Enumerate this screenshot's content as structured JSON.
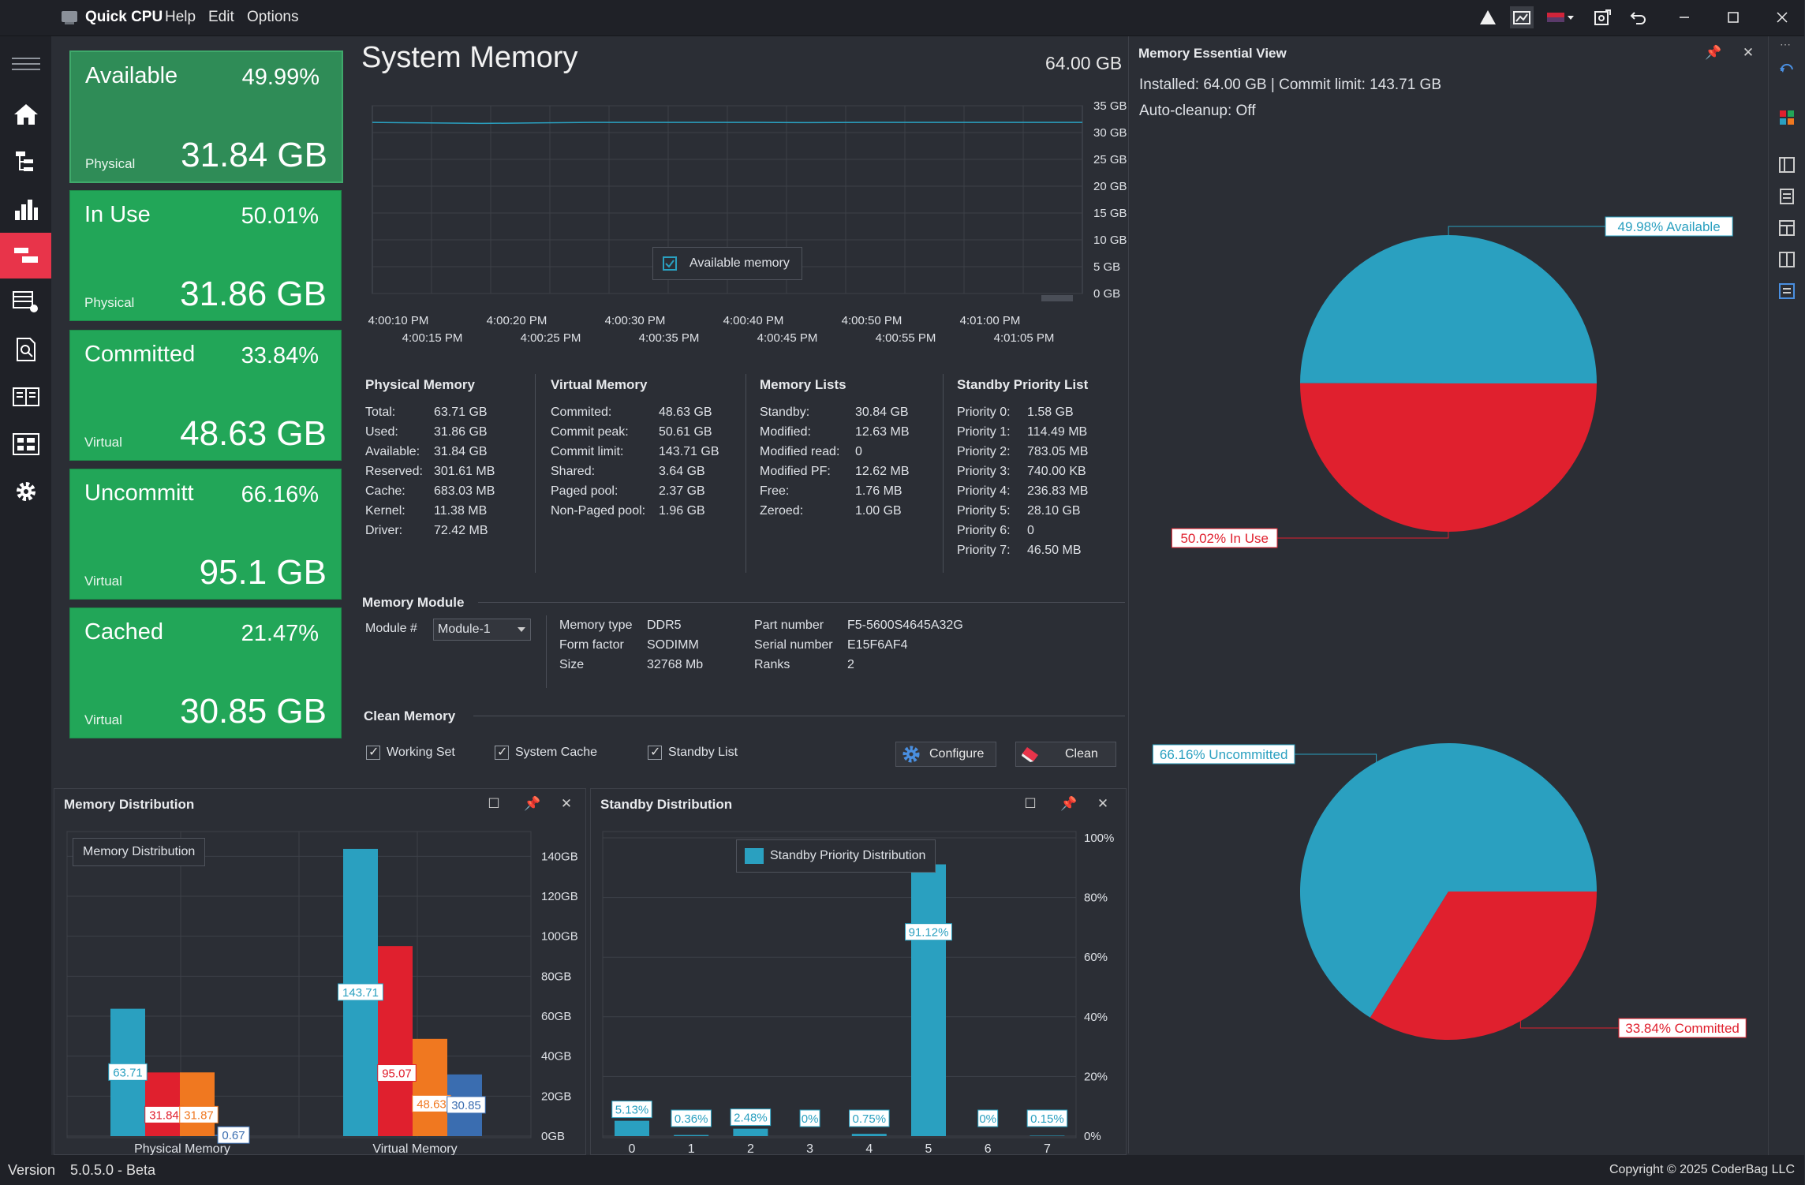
{
  "app": {
    "name": "Quick CPU",
    "menus": [
      "Help",
      "Edit",
      "Options"
    ]
  },
  "cards": [
    {
      "label": "Available",
      "percent": "49.99%",
      "sub": "Physical",
      "value": "31.84 GB"
    },
    {
      "label": "In Use",
      "percent": "50.01%",
      "sub": "Physical",
      "value": "31.86 GB"
    },
    {
      "label": "Committed",
      "percent": "33.84%",
      "sub": "Virtual",
      "value": "48.63 GB"
    },
    {
      "label": "Uncommitt",
      "percent": "66.16%",
      "sub": "Virtual",
      "value": "95.1 GB"
    },
    {
      "label": "Cached",
      "percent": "21.47%",
      "sub": "Virtual",
      "value": "30.85 GB"
    }
  ],
  "system_memory": {
    "title": "System Memory",
    "total": "64.00 GB",
    "chart": {
      "y_ticks": [
        "35 GB",
        "30 GB",
        "25 GB",
        "20 GB",
        "15 GB",
        "10 GB",
        "5 GB",
        "0 GB"
      ],
      "x_ticks_top": [
        "4:00:10 PM",
        "4:00:20 PM",
        "4:00:30 PM",
        "4:00:40 PM",
        "4:00:50 PM",
        "4:01:00 PM"
      ],
      "x_ticks_bottom": [
        "4:00:15 PM",
        "4:00:25 PM",
        "4:00:35 PM",
        "4:00:45 PM",
        "4:00:55 PM",
        "4:01:05 PM"
      ],
      "legend": "Available memory",
      "ylim": [
        0,
        35
      ],
      "series_values": [
        31.9,
        31.8,
        31.7,
        31.8,
        31.9,
        31.9,
        31.9,
        31.9,
        31.85,
        31.9,
        31.9,
        31.9,
        31.9,
        31.9
      ]
    }
  },
  "physical_memory": {
    "title": "Physical Memory",
    "rows": [
      {
        "k": "Total:",
        "v": "63.71 GB"
      },
      {
        "k": "Used:",
        "v": "31.86 GB"
      },
      {
        "k": "Available:",
        "v": "31.84 GB"
      },
      {
        "k": "Reserved:",
        "v": "301.61 MB"
      },
      {
        "k": "Cache:",
        "v": "683.03 MB"
      },
      {
        "k": "Kernel:",
        "v": "11.38 MB"
      },
      {
        "k": "Driver:",
        "v": "72.42 MB"
      }
    ]
  },
  "virtual_memory": {
    "title": "Virtual Memory",
    "rows": [
      {
        "k": "Commited:",
        "v": "48.63 GB"
      },
      {
        "k": "Commit peak:",
        "v": "50.61 GB"
      },
      {
        "k": "Commit limit:",
        "v": "143.71 GB"
      },
      {
        "k": "Shared:",
        "v": "3.64 GB"
      },
      {
        "k": "Paged pool:",
        "v": "2.37 GB"
      },
      {
        "k": "Non-Paged pool:",
        "v": "1.96 GB"
      }
    ]
  },
  "memory_lists": {
    "title": "Memory Lists",
    "rows": [
      {
        "k": "Standby:",
        "v": "30.84 GB"
      },
      {
        "k": "Modified:",
        "v": "12.63 MB"
      },
      {
        "k": "Modified read:",
        "v": "0"
      },
      {
        "k": "Modified PF:",
        "v": "12.62 MB"
      },
      {
        "k": "Free:",
        "v": "1.76 MB"
      },
      {
        "k": "Zeroed:",
        "v": "1.00 GB"
      }
    ]
  },
  "standby_priority": {
    "title": "Standby Priority List",
    "rows": [
      {
        "k": "Priority 0:",
        "v": "1.58 GB"
      },
      {
        "k": "Priority 1:",
        "v": "114.49 MB"
      },
      {
        "k": "Priority 2:",
        "v": "783.05 MB"
      },
      {
        "k": "Priority 3:",
        "v": "740.00 KB"
      },
      {
        "k": "Priority 4:",
        "v": "236.83 MB"
      },
      {
        "k": "Priority 5:",
        "v": "28.10 GB"
      },
      {
        "k": "Priority 6:",
        "v": "0"
      },
      {
        "k": "Priority 7:",
        "v": "46.50 MB"
      }
    ]
  },
  "memory_module": {
    "title": "Memory Module",
    "module_label": "Module #",
    "module_value": "Module-1",
    "col1": [
      {
        "k": "Memory type",
        "v": "DDR5"
      },
      {
        "k": "Form factor",
        "v": "SODIMM"
      },
      {
        "k": "Size",
        "v": "32768 Mb"
      }
    ],
    "col2": [
      {
        "k": "Part number",
        "v": "F5-5600S4645A32G"
      },
      {
        "k": "Serial number",
        "v": "E15F6AF4"
      },
      {
        "k": "Ranks",
        "v": "2"
      }
    ]
  },
  "clean_memory": {
    "title": "Clean Memory",
    "options": [
      "Working Set",
      "System Cache",
      "Standby List"
    ],
    "configure_label": "Configure",
    "clean_label": "Clean"
  },
  "memory_distribution": {
    "panel_title": "Memory Distribution",
    "legend": "Memory Distribution",
    "chart_data": {
      "type": "bar",
      "categories": [
        "Physical Memory",
        "Virtual Memory"
      ],
      "series": [
        {
          "color": "#2aa0c0",
          "values": [
            63.71,
            143.71
          ]
        },
        {
          "color": "#e0202e",
          "values": [
            31.84,
            95.07
          ]
        },
        {
          "color": "#f07820",
          "values": [
            31.87,
            48.63
          ]
        },
        {
          "color": "#3a6db0",
          "values": [
            0.67,
            30.85
          ]
        }
      ],
      "value_labels": [
        [
          "63.71",
          "143.71"
        ],
        [
          "31.84",
          "95.07"
        ],
        [
          "31.87",
          "48.63"
        ],
        [
          "0.67",
          "30.85"
        ]
      ],
      "y_ticks": [
        "140GB",
        "120GB",
        "100GB",
        "80GB",
        "60GB",
        "40GB",
        "20GB",
        "0GB"
      ],
      "ylim": [
        0,
        150
      ]
    }
  },
  "standby_distribution": {
    "panel_title": "Standby Distribution",
    "legend": "Standby Priority Distribution",
    "chart_data": {
      "type": "bar",
      "categories": [
        "0",
        "1",
        "2",
        "3",
        "4",
        "5",
        "6",
        "7"
      ],
      "values": [
        5.13,
        0.36,
        2.48,
        0,
        0.75,
        91.12,
        0,
        0.15
      ],
      "value_labels": [
        "5.13%",
        "0.36%",
        "2.48%",
        "0%",
        "0.75%",
        "91.12%",
        "0%",
        "0.15%"
      ],
      "y_ticks": [
        "100%",
        "80%",
        "60%",
        "40%",
        "20%",
        "0%"
      ],
      "ylim": [
        0,
        100
      ]
    }
  },
  "essential_view": {
    "title": "Memory Essential View",
    "line1": "Installed: 64.00 GB | Commit limit: 143.71 GB",
    "line2": "Auto-cleanup: Off",
    "pie_top": {
      "chart_data": {
        "type": "pie",
        "slices": [
          {
            "label": "49.98% Available",
            "value": 49.98,
            "color": "#2aa0c0"
          },
          {
            "label": "50.02% In Use",
            "value": 50.02,
            "color": "#e0202e"
          }
        ]
      }
    },
    "pie_bottom": {
      "chart_data": {
        "type": "pie",
        "slices": [
          {
            "label": "66.16% Uncommitted",
            "value": 66.16,
            "color": "#2aa0c0"
          },
          {
            "label": "33.84% Committed",
            "value": 33.84,
            "color": "#e0202e"
          }
        ]
      }
    }
  },
  "status": {
    "version_label": "Version",
    "version": "5.0.5.0 - Beta",
    "copyright": "Copyright © 2025 CoderBag LLC"
  }
}
